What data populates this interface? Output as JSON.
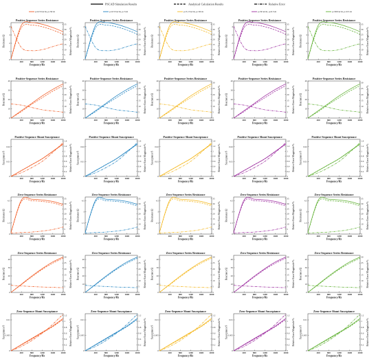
{
  "legend": {
    "sim": "PSCAD Simulation Results",
    "ana": "Analytical Calculation Results",
    "err": "Relative Error"
  },
  "col_colors": [
    "#f15a22",
    "#1f82c0",
    "#f4b61a",
    "#9b2a9e",
    "#5fb032"
  ],
  "captions": [
    "ρ=0.53 Ω·m, ρ=50 m",
    "ρ=0.53 Ω·m, ρ=5 m",
    "ρ=5.13 Ω·m, ρ=50 m",
    "ρ=50 Ω·m, ρ=0.5 m",
    "ρ=500 Ω·m, ρ=0.5 m"
  ],
  "ylabel_right": "Relative Error Magnitude/%",
  "xlabel": "Frequency/Hz",
  "chart_data": [
    {
      "type": "line",
      "title": "Positive-Sequence Series Resistance",
      "ylabel": "Resistance/Ω",
      "x": [
        0,
        400,
        800,
        1200,
        1600,
        2000
      ],
      "xlim": [
        0,
        2000
      ],
      "ylim": [
        0,
        4.5
      ],
      "yticks": [
        "0",
        "1",
        "2",
        "3",
        "4"
      ],
      "y2ticks": [
        "0",
        "5",
        "10",
        "15",
        "20",
        "25",
        "30",
        "35"
      ],
      "series": [
        {
          "name": "PSCAD Simulation Results",
          "values": [
            0.1,
            4.2,
            4.5,
            4.3,
            3.9,
            3.4
          ]
        },
        {
          "name": "Analytical Calculation Results",
          "values": [
            0.1,
            3.9,
            4.2,
            4.0,
            3.6,
            3.1
          ]
        },
        {
          "name": "Relative Error",
          "values": [
            33,
            12,
            9,
            10,
            13,
            16
          ]
        }
      ]
    },
    {
      "type": "line",
      "title": "Positive-Sequence Series Resistance",
      "ylabel": "Reactance/Ω",
      "x": [
        0,
        400,
        800,
        1200,
        1600,
        2000
      ],
      "xlim": [
        0,
        2000
      ],
      "ylim": [
        0,
        40
      ],
      "yticks": [
        "0",
        "10",
        "20",
        "30",
        "40"
      ],
      "y2ticks": [
        "0",
        "5",
        "10",
        "15",
        "20",
        "25",
        "30"
      ],
      "series": [
        {
          "name": "PSCAD Simulation Results",
          "values": [
            0,
            8,
            16,
            24,
            31,
            37
          ]
        },
        {
          "name": "Analytical Calculation Results",
          "values": [
            0,
            7,
            15,
            22,
            29,
            35
          ]
        },
        {
          "name": "Relative Error",
          "values": [
            12,
            11,
            9,
            7,
            6,
            5
          ]
        }
      ]
    },
    {
      "type": "line",
      "title": "Positive-Sequence Shunt Susceptance",
      "ylabel": "Susceptance/S",
      "x": [
        0,
        400,
        800,
        1200,
        1600,
        2000
      ],
      "xlim": [
        0,
        2000
      ],
      "ylim": [
        0,
        0.025
      ],
      "yticks": [
        "0",
        "0.01",
        "0.02"
      ],
      "y2ticks": [
        "0",
        "0.2",
        "0.4",
        "0.6",
        "0.8",
        "1",
        "1.2",
        "1.4"
      ],
      "series": [
        {
          "name": "PSCAD Simulation Results",
          "values": [
            0,
            0.004,
            0.008,
            0.012,
            0.017,
            0.022
          ]
        },
        {
          "name": "Analytical Calculation Results",
          "values": [
            0,
            0.0039,
            0.0079,
            0.0119,
            0.0168,
            0.0217
          ]
        },
        {
          "name": "Relative Error",
          "values": [
            0,
            0.15,
            0.35,
            0.6,
            0.95,
            1.35
          ]
        }
      ]
    },
    {
      "type": "line",
      "title": "Zero-Sequence Series Resistance",
      "ylabel": "Resistance/Ω",
      "x": [
        0,
        400,
        800,
        1200,
        1600,
        2000
      ],
      "xlim": [
        0,
        2000
      ],
      "ylim": [
        0,
        5
      ],
      "yticks": [
        "0",
        "1.5",
        "3",
        "4.5"
      ],
      "y2ticks": [
        "0",
        "5",
        "10",
        "15",
        "20",
        "25",
        "30",
        "35"
      ],
      "series": [
        {
          "name": "PSCAD Simulation Results",
          "values": [
            0.2,
            4.6,
            4.7,
            4.6,
            4.4,
            4.0
          ]
        },
        {
          "name": "Analytical Calculation Results",
          "values": [
            0.2,
            4.4,
            4.5,
            4.4,
            4.2,
            3.8
          ]
        },
        {
          "name": "Relative Error",
          "values": [
            1,
            1.5,
            2,
            3,
            4.5,
            7
          ]
        }
      ]
    },
    {
      "type": "line",
      "title": "Zero-Sequence Series Resistance",
      "ylabel": "Reactance/Ω",
      "x": [
        0,
        400,
        800,
        1200,
        1600,
        2000
      ],
      "xlim": [
        0,
        2000
      ],
      "ylim": [
        0,
        45
      ],
      "yticks": [
        "0",
        "10",
        "20",
        "30",
        "40"
      ],
      "y2ticks": [
        "0",
        "5",
        "10",
        "15",
        "20",
        "25",
        "30"
      ],
      "series": [
        {
          "name": "PSCAD Simulation Results",
          "values": [
            0,
            10,
            20,
            29,
            37,
            43
          ]
        },
        {
          "name": "Analytical Calculation Results",
          "values": [
            0,
            9.5,
            19,
            28,
            35.5,
            41.5
          ]
        },
        {
          "name": "Relative Error",
          "values": [
            6,
            5.5,
            5,
            4.6,
            4.3,
            4
          ]
        }
      ]
    },
    {
      "type": "line",
      "title": "Zero-Sequence Shunt Susceptance",
      "ylabel": "Susceptance/S",
      "x": [
        0,
        400,
        800,
        1200,
        1600,
        2000
      ],
      "xlim": [
        0,
        2000
      ],
      "ylim": [
        0,
        0.012
      ],
      "yticks": [
        "0",
        "0.005",
        "0.01"
      ],
      "y2ticks": [
        "0",
        "0.2",
        "0.4",
        "0.6",
        "0.8",
        "1",
        "1.2"
      ],
      "series": [
        {
          "name": "PSCAD Simulation Results",
          "values": [
            0,
            0.002,
            0.004,
            0.006,
            0.008,
            0.0105
          ]
        },
        {
          "name": "Analytical Calculation Results",
          "values": [
            0,
            0.0019,
            0.0038,
            0.0058,
            0.0078,
            0.0102
          ]
        },
        {
          "name": "Relative Error",
          "values": [
            0,
            0.15,
            0.35,
            0.6,
            0.9,
            1.25
          ]
        }
      ]
    }
  ]
}
